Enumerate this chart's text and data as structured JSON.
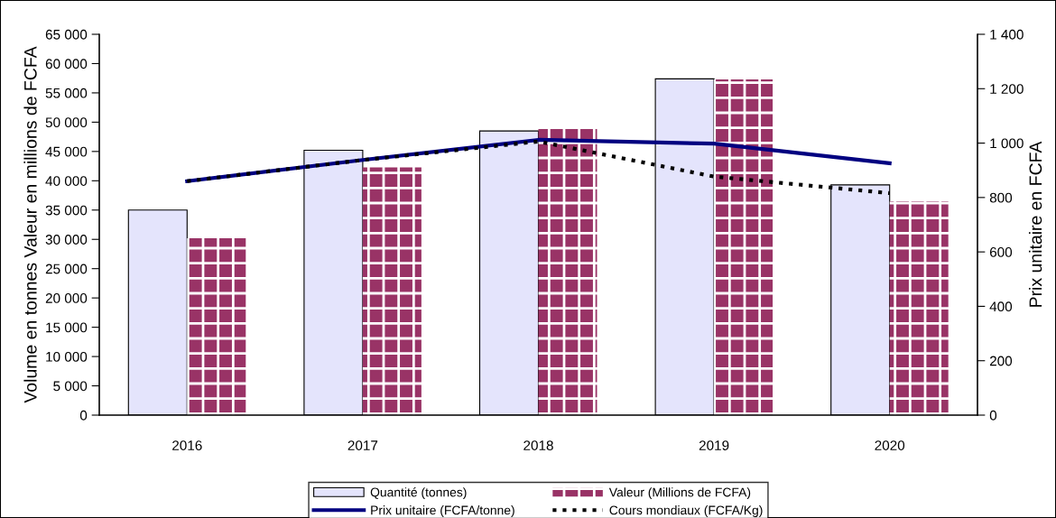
{
  "chart_data": {
    "type": "bar",
    "categories": [
      "2016",
      "2017",
      "2018",
      "2019",
      "2020"
    ],
    "ylabel": "Volume en tonnes Valeur en millions de FCFA",
    "y2label": "Prix unitaire en FCFA",
    "ylim": [
      0,
      65000
    ],
    "yticks": [
      0,
      {
        "value": 5000,
        "label": "5 000"
      },
      {
        "value": 10000,
        "label": "10 000"
      },
      {
        "value": 15000,
        "label": "15 000"
      },
      {
        "value": 20000,
        "label": "20 000"
      },
      {
        "value": 25000,
        "label": "25 000"
      },
      {
        "value": 30000,
        "label": "30 000"
      },
      {
        "value": 35000,
        "label": "35 000"
      },
      {
        "value": 40000,
        "label": "40 000"
      },
      {
        "value": 45000,
        "label": "45 000"
      },
      {
        "value": 50000,
        "label": "50 000"
      },
      {
        "value": 55000,
        "label": "55 000"
      },
      {
        "value": 60000,
        "label": "60 000"
      },
      {
        "value": 65000,
        "label": "65 000"
      }
    ],
    "y2lim": [
      0,
      1400
    ],
    "y2ticks": [
      0,
      200,
      400,
      600,
      800,
      {
        "value": 1000,
        "label": "1 000"
      },
      {
        "value": 1200,
        "label": "1 200"
      },
      {
        "value": 1400,
        "label": "1 400"
      }
    ],
    "grid": false,
    "legend": "bottom",
    "series": [
      {
        "name": "Quantité (tonnes)",
        "type": "bar",
        "color": "#e4e4fc",
        "values": [
          35000,
          45200,
          48500,
          57400,
          39300
        ]
      },
      {
        "name": "Valeur (Millions de FCFA)",
        "type": "bar",
        "color": "#993366",
        "values": [
          30200,
          42300,
          49000,
          57300,
          36500
        ]
      },
      {
        "name": "Prix unitaire (FCFA/tonne)",
        "type": "line",
        "axis": "y2",
        "color": "#000080",
        "line_style": "solid",
        "values": [
          860,
          938,
          1012,
          998,
          926
        ]
      },
      {
        "name": "Cours mondiaux (FCFA/Kg)",
        "type": "line",
        "axis": "y2",
        "color": "#000000",
        "line_style": "dotted",
        "values": [
          860,
          938,
          1006,
          877,
          816
        ]
      }
    ]
  }
}
